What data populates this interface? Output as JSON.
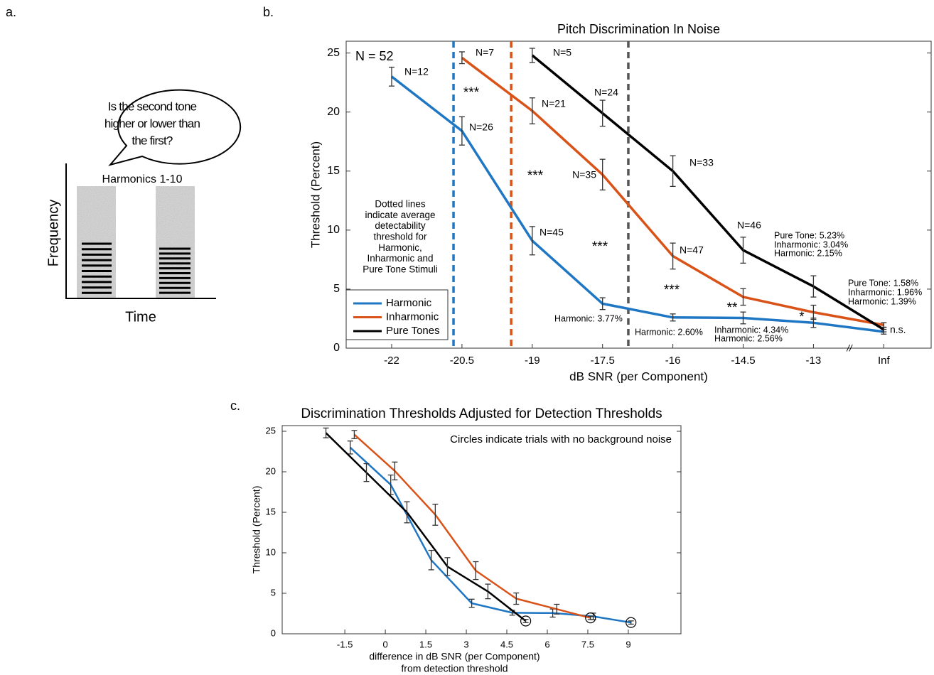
{
  "panel_labels": [
    "a.",
    "b.",
    "c."
  ],
  "diagram": {
    "bubble": [
      "Is the second tone",
      "higher or lower than",
      "the first?"
    ],
    "stimulus_label": "Harmonics 1-10",
    "y_label": "Frequency",
    "x_label": "Time"
  },
  "chart_data": [
    {
      "type": "line",
      "title": "Pitch Discrimination In Noise",
      "x_label": "dB SNR (per Component)",
      "y_label": "Threshold (Percent)",
      "categories": [
        "-22",
        "-20.5",
        "-19",
        "-17.5",
        "-16",
        "-14.5",
        "-13",
        "Inf"
      ],
      "ylim": [
        0,
        26
      ],
      "yticks": [
        0,
        5,
        10,
        15,
        20,
        25
      ],
      "grid": false,
      "legend": "lower left",
      "axis_break": "//",
      "series": [
        {
          "name": "Harmonic",
          "color": "#1f77c4",
          "values": [
            23.0,
            18.4,
            9.1,
            3.77,
            2.6,
            2.56,
            2.15,
            1.39
          ],
          "errors": [
            0.8,
            1.2,
            1.2,
            0.5,
            0.3,
            0.5,
            0.4,
            0.2
          ],
          "n_labels": [
            "N=12",
            "N=26",
            "N=45",
            null,
            null,
            null,
            null,
            null
          ]
        },
        {
          "name": "Inharmonic",
          "color": "#d95319",
          "values": [
            null,
            24.6,
            20.1,
            14.7,
            7.8,
            4.34,
            3.04,
            1.96
          ],
          "errors": [
            null,
            0.5,
            1.1,
            1.3,
            1.1,
            0.7,
            0.6,
            0.2
          ],
          "n_labels": [
            null,
            "N=7",
            "N=21",
            "N=35",
            "N=47",
            null,
            null,
            null
          ]
        },
        {
          "name": "Pure Tones",
          "color": "#000000",
          "values": [
            null,
            null,
            24.8,
            19.9,
            15.0,
            8.3,
            5.23,
            1.58
          ],
          "errors": [
            null,
            null,
            0.6,
            1.1,
            1.3,
            1.1,
            0.9,
            0.2
          ],
          "n_labels": [
            null,
            null,
            "N=5",
            "N=24",
            "N=33",
            "N=46",
            null,
            null
          ]
        }
      ],
      "threshold_lines": [
        {
          "x": -20.68,
          "color": "#1f77c4"
        },
        {
          "x": -19.45,
          "color": "#d95319"
        },
        {
          "x": -16.95,
          "color": "#555555"
        }
      ],
      "sample_size": "N = 52",
      "note": [
        "Dotted lines",
        "indicate average",
        "detectability",
        "threshold for",
        "Harmonic,",
        "Inharmonic and",
        "Pure Tone Stimuli"
      ],
      "significance": [
        "***",
        "***",
        "***",
        "***",
        "**",
        "*",
        "n.s."
      ],
      "annotations": [
        "Harmonic: 3.77%",
        "Harmonic: 2.60%",
        "Inharmonic: 4.34%",
        "Harmonic: 2.56%",
        "Pure Tone: 5.23%",
        "Inharmonic: 3.04%",
        "Harmonic: 2.15%",
        "Pure Tone: 1.58%",
        "Inharmonic: 1.96%",
        "Harmonic: 1.39%"
      ]
    },
    {
      "type": "line",
      "title": "Discrimination Thresholds Adjusted for Detection Thresholds",
      "x_label": [
        "difference in dB SNR (per Component)",
        "from detection threshold"
      ],
      "y_label": "Threshold (Percent)",
      "xlim": [
        -3.82,
        10.95
      ],
      "xticks": [
        -1.5,
        0,
        1.5,
        3,
        4.5,
        6,
        7.5,
        9
      ],
      "ylim": [
        0,
        25.7
      ],
      "yticks": [
        0,
        5,
        10,
        15,
        20,
        25
      ],
      "grid": false,
      "note": "Circles indicate trials with no background noise",
      "series": [
        {
          "name": "Harmonic",
          "color": "#1f77c4",
          "x": [
            -1.3,
            0.2,
            1.7,
            3.2,
            4.7,
            6.2,
            7.7,
            9.1
          ],
          "values": [
            23.0,
            18.4,
            9.1,
            3.77,
            2.6,
            2.56,
            2.15,
            1.39
          ],
          "errors": [
            0.8,
            1.2,
            1.2,
            0.5,
            0.3,
            0.5,
            0.4,
            0.2
          ]
        },
        {
          "name": "Inharmonic",
          "color": "#d95319",
          "x": [
            -1.15,
            0.35,
            1.85,
            3.35,
            4.85,
            6.35,
            7.6
          ],
          "values": [
            24.6,
            20.1,
            14.7,
            7.8,
            4.34,
            3.04,
            1.96
          ],
          "errors": [
            0.5,
            1.1,
            1.3,
            1.1,
            0.7,
            0.6,
            0.2
          ]
        },
        {
          "name": "Pure Tones",
          "color": "#000000",
          "x": [
            -2.2,
            -0.7,
            0.8,
            2.3,
            3.8,
            5.2
          ],
          "values": [
            24.8,
            19.9,
            15.0,
            8.3,
            5.23,
            1.58
          ],
          "errors": [
            0.6,
            1.1,
            1.3,
            1.1,
            0.9,
            0.2
          ]
        }
      ]
    }
  ]
}
